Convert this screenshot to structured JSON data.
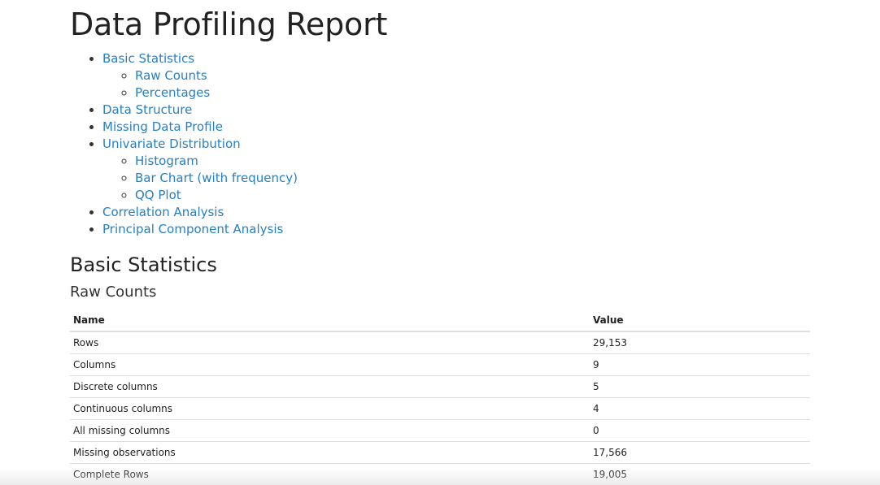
{
  "title": "Data Profiling Report",
  "toc": [
    {
      "label": "Basic Statistics",
      "children": [
        "Raw Counts",
        "Percentages"
      ]
    },
    {
      "label": "Data Structure",
      "children": []
    },
    {
      "label": "Missing Data Profile",
      "children": []
    },
    {
      "label": "Univariate Distribution",
      "children": [
        "Histogram",
        "Bar Chart (with frequency)",
        "QQ Plot"
      ]
    },
    {
      "label": "Correlation Analysis",
      "children": []
    },
    {
      "label": "Principal Component Analysis",
      "children": []
    }
  ],
  "section_title": "Basic Statistics",
  "subsection_title": "Raw Counts",
  "table": {
    "headers": [
      "Name",
      "Value"
    ],
    "rows": [
      [
        "Rows",
        "29,153"
      ],
      [
        "Columns",
        "9"
      ],
      [
        "Discrete columns",
        "5"
      ],
      [
        "Continuous columns",
        "4"
      ],
      [
        "All missing columns",
        "0"
      ],
      [
        "Missing observations",
        "17,566"
      ],
      [
        "Complete Rows",
        "19,005"
      ]
    ]
  },
  "colors": {
    "link": "#2780c4",
    "text": "#333333",
    "border": "#dddddd"
  }
}
